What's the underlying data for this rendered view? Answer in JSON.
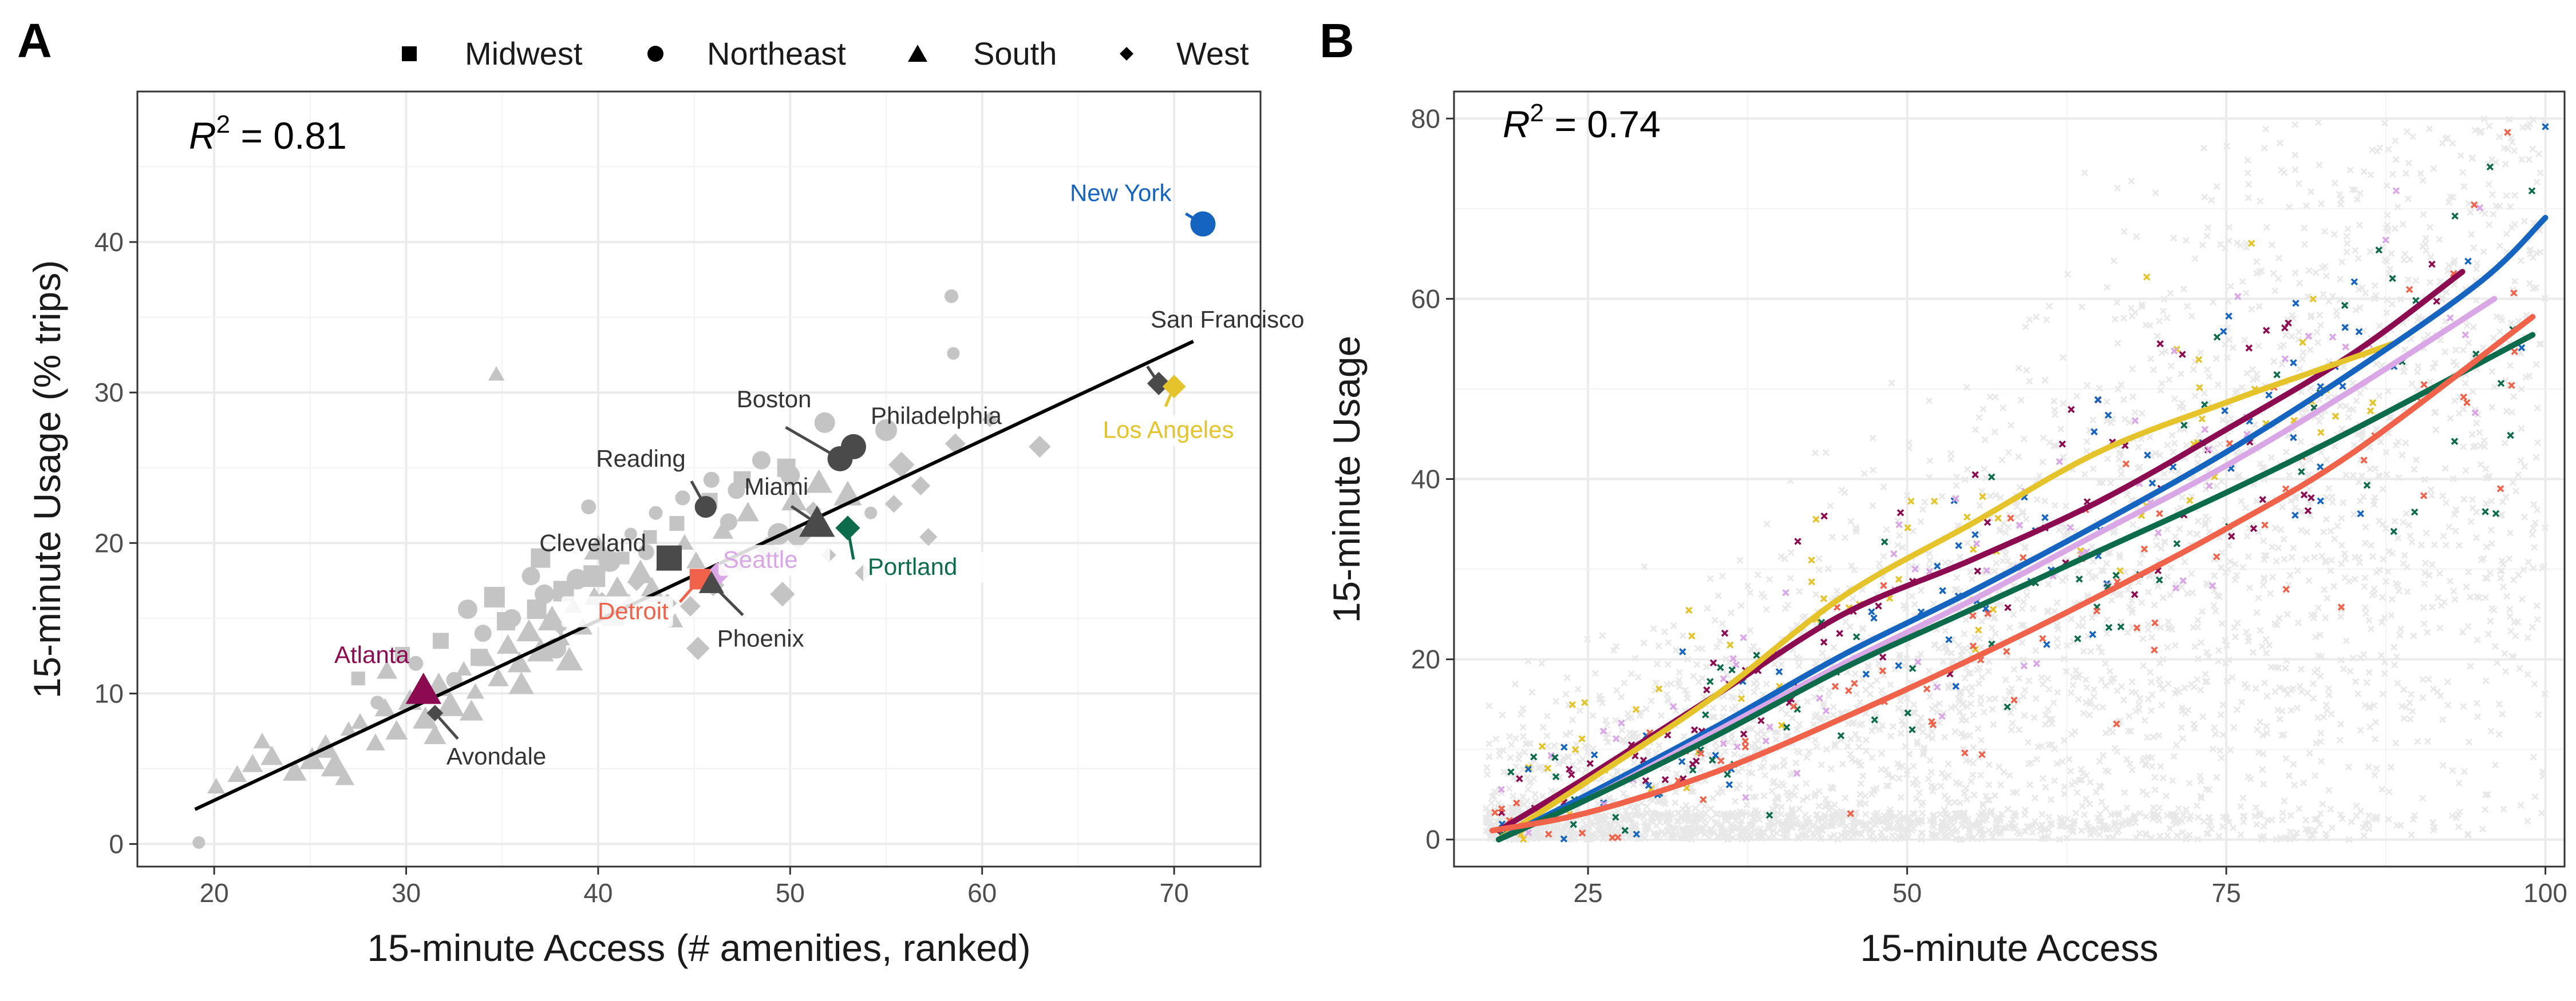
{
  "colors": {
    "grey_points": "#c4c4c4",
    "dark_points": "#4a4a4a",
    "fit_line": "#000000",
    "bg_cloud": "#e8e8e8",
    "new_york": "#1565c0",
    "los_angeles": "#e5c32a",
    "atlanta": "#8c0a4f",
    "detroit": "#f0624a",
    "seattle": "#d9a6e6",
    "portland": "#0b6b4a"
  },
  "panel_a": {
    "letter": "A",
    "r2_label": "R",
    "r2_sup": "2",
    "r2_value": " = 0.81",
    "legend": [
      {
        "shape": "square",
        "label": "Midwest"
      },
      {
        "shape": "circle",
        "label": "Northeast"
      },
      {
        "shape": "triangle",
        "label": "South"
      },
      {
        "shape": "diamond",
        "label": "West"
      }
    ]
  },
  "panel_b": {
    "letter": "B",
    "r2_label": "R",
    "r2_sup": "2",
    "r2_value": " = 0.74"
  },
  "chart_data": [
    {
      "type": "scatter",
      "panel": "A",
      "title": "",
      "xlabel": "15-minute Access (# amenities, ranked)",
      "ylabel": "15-minute Usage (% trips)",
      "xlim": [
        16,
        74.5
      ],
      "ylim": [
        -1.5,
        50
      ],
      "xticks": [
        20,
        30,
        40,
        50,
        60,
        70
      ],
      "yticks": [
        0,
        10,
        20,
        30,
        40
      ],
      "r2": 0.81,
      "fit_line": {
        "x": [
          19,
          71
        ],
        "y": [
          2.3,
          33.4
        ]
      },
      "highlighted_cities": [
        {
          "name": "New York",
          "x": 71.5,
          "y": 41.2,
          "shape": "circle",
          "color_key": "new_york"
        },
        {
          "name": "San Francisco",
          "x": 69.2,
          "y": 30.6,
          "shape": "diamond",
          "color_key": "dark_points"
        },
        {
          "name": "Los Angeles",
          "x": 70.0,
          "y": 30.4,
          "shape": "diamond",
          "color_key": "los_angeles"
        },
        {
          "name": "Boston",
          "x": 52.6,
          "y": 25.6,
          "shape": "circle",
          "color_key": "dark_points"
        },
        {
          "name": "Philadelphia",
          "x": 53.3,
          "y": 26.4,
          "shape": "circle",
          "color_key": "dark_points"
        },
        {
          "name": "Reading",
          "x": 45.6,
          "y": 22.4,
          "shape": "circle",
          "color_key": "dark_points"
        },
        {
          "name": "Miami",
          "x": 51.4,
          "y": 21.3,
          "shape": "triangle",
          "color_key": "dark_points"
        },
        {
          "name": "Portland",
          "x": 53.0,
          "y": 21.0,
          "shape": "diamond",
          "color_key": "portland"
        },
        {
          "name": "Cleveland",
          "x": 43.7,
          "y": 19.0,
          "shape": "square",
          "color_key": "dark_points"
        },
        {
          "name": "Seattle",
          "x": 46.2,
          "y": 17.9,
          "shape": "diamond",
          "color_key": "seattle"
        },
        {
          "name": "Detroit",
          "x": 45.3,
          "y": 17.6,
          "shape": "square",
          "color_key": "detroit"
        },
        {
          "name": "Phoenix",
          "x": 45.9,
          "y": 17.3,
          "shape": "triangle",
          "color_key": "dark_points"
        },
        {
          "name": "Atlanta",
          "x": 30.9,
          "y": 10.2,
          "shape": "triangle",
          "color_key": "atlanta"
        },
        {
          "name": "Avondale",
          "x": 31.5,
          "y": 8.7,
          "shape": "diamond",
          "color_key": "dark_points"
        }
      ],
      "background_points": [
        [
          19.2,
          0.1,
          "c"
        ],
        [
          20.1,
          3.8,
          "t"
        ],
        [
          21.2,
          4.6,
          "t"
        ],
        [
          22.0,
          5.3,
          "t"
        ],
        [
          23.0,
          5.8,
          "t"
        ],
        [
          24.2,
          4.8,
          "t"
        ],
        [
          25.1,
          5.6,
          "t"
        ],
        [
          25.8,
          6.4,
          "t"
        ],
        [
          26.3,
          5.2,
          "t"
        ],
        [
          27.0,
          7.6,
          "t"
        ],
        [
          27.6,
          8.1,
          "t"
        ],
        [
          28.4,
          6.7,
          "t"
        ],
        [
          28.9,
          9.0,
          "t"
        ],
        [
          29.5,
          7.5,
          "t"
        ],
        [
          30.2,
          9.5,
          "t"
        ],
        [
          31.0,
          8.3,
          "t"
        ],
        [
          31.7,
          10.5,
          "t"
        ],
        [
          32.3,
          9.2,
          "t"
        ],
        [
          33.0,
          11.6,
          "t"
        ],
        [
          33.6,
          10.1,
          "t"
        ],
        [
          34.2,
          12.3,
          "t"
        ],
        [
          34.8,
          11.0,
          "t"
        ],
        [
          35.3,
          13.2,
          "t"
        ],
        [
          35.9,
          12.0,
          "t"
        ],
        [
          36.4,
          14.1,
          "t"
        ],
        [
          37.0,
          12.8,
          "t"
        ],
        [
          37.6,
          14.9,
          "t"
        ],
        [
          38.1,
          13.6,
          "t"
        ],
        [
          38.7,
          15.8,
          "t"
        ],
        [
          39.2,
          14.4,
          "t"
        ],
        [
          39.8,
          16.4,
          "t"
        ],
        [
          40.4,
          15.2,
          "t"
        ],
        [
          41.0,
          17.0,
          "t"
        ],
        [
          41.6,
          15.8,
          "t"
        ],
        [
          42.2,
          18.0,
          "t"
        ],
        [
          42.8,
          16.8,
          "t"
        ],
        [
          43.4,
          18.6,
          "t"
        ],
        [
          44.5,
          20.0,
          "t"
        ],
        [
          45.1,
          18.8,
          "t"
        ],
        [
          46.5,
          20.8,
          "t"
        ],
        [
          47.8,
          22.0,
          "t"
        ],
        [
          49.0,
          19.6,
          "t"
        ],
        [
          50.2,
          22.8,
          "t"
        ],
        [
          51.5,
          24.0,
          "t"
        ],
        [
          53.0,
          23.2,
          "t"
        ],
        [
          34.7,
          31.2,
          "t"
        ],
        [
          22.5,
          6.8,
          "t"
        ],
        [
          26.8,
          4.4,
          "t"
        ],
        [
          29.0,
          11.5,
          "t"
        ],
        [
          31.5,
          7.2,
          "t"
        ],
        [
          33.4,
          8.8,
          "t"
        ],
        [
          36.0,
          10.6,
          "t"
        ],
        [
          38.5,
          12.2,
          "t"
        ],
        [
          40.0,
          19.6,
          "t"
        ],
        [
          44.0,
          14.8,
          "t"
        ],
        [
          28.5,
          9.4,
          "c"
        ],
        [
          30.5,
          12.0,
          "c"
        ],
        [
          32.5,
          10.9,
          "c"
        ],
        [
          34.0,
          14.0,
          "c"
        ],
        [
          35.5,
          15.0,
          "c"
        ],
        [
          37.2,
          16.6,
          "c"
        ],
        [
          38.9,
          17.6,
          "c"
        ],
        [
          40.6,
          18.8,
          "c"
        ],
        [
          41.7,
          20.6,
          "c"
        ],
        [
          43.0,
          22.0,
          "c"
        ],
        [
          44.4,
          23.0,
          "c"
        ],
        [
          45.9,
          24.2,
          "c"
        ],
        [
          47.2,
          23.5,
          "c"
        ],
        [
          48.5,
          25.5,
          "c"
        ],
        [
          50.0,
          24.5,
          "c"
        ],
        [
          51.8,
          28.0,
          "c"
        ],
        [
          55.0,
          27.5,
          "c"
        ],
        [
          58.5,
          32.6,
          "c"
        ],
        [
          58.4,
          36.4,
          "c"
        ],
        [
          39.5,
          22.4,
          "c"
        ],
        [
          42.5,
          19.4,
          "c"
        ],
        [
          46.8,
          21.4,
          "c"
        ],
        [
          36.5,
          17.8,
          "c"
        ],
        [
          33.2,
          15.6,
          "c"
        ],
        [
          37.8,
          13.0,
          "c"
        ],
        [
          49.4,
          20.6,
          "c"
        ],
        [
          54.2,
          22.0,
          "c"
        ],
        [
          27.5,
          11.0,
          "s"
        ],
        [
          29.8,
          12.6,
          "s"
        ],
        [
          31.8,
          13.5,
          "s"
        ],
        [
          33.8,
          12.4,
          "s"
        ],
        [
          35.2,
          14.8,
          "s"
        ],
        [
          36.8,
          15.6,
          "s"
        ],
        [
          38.2,
          16.8,
          "s"
        ],
        [
          39.8,
          17.8,
          "s"
        ],
        [
          41.3,
          19.0,
          "s"
        ],
        [
          42.7,
          20.4,
          "s"
        ],
        [
          44.1,
          21.3,
          "s"
        ],
        [
          45.8,
          22.8,
          "s"
        ],
        [
          47.5,
          24.2,
          "s"
        ],
        [
          49.8,
          25.0,
          "s"
        ],
        [
          37.0,
          19.0,
          "s"
        ],
        [
          34.6,
          16.4,
          "s"
        ],
        [
          40.8,
          15.2,
          "s"
        ],
        [
          38.0,
          14.4,
          "d"
        ],
        [
          40.2,
          16.2,
          "d"
        ],
        [
          42.0,
          17.4,
          "d"
        ],
        [
          43.6,
          16.0,
          "d"
        ],
        [
          44.8,
          15.8,
          "d"
        ],
        [
          46.0,
          17.2,
          "d"
        ],
        [
          47.4,
          18.8,
          "d"
        ],
        [
          48.8,
          19.6,
          "d"
        ],
        [
          50.4,
          20.4,
          "d"
        ],
        [
          52.0,
          19.2,
          "d"
        ],
        [
          53.8,
          18.0,
          "d"
        ],
        [
          55.4,
          22.6,
          "d"
        ],
        [
          56.8,
          23.8,
          "d"
        ],
        [
          58.6,
          26.6,
          "d"
        ],
        [
          63.0,
          26.4,
          "d"
        ],
        [
          45.2,
          13.0,
          "d"
        ],
        [
          49.6,
          16.6,
          "d"
        ],
        [
          55.8,
          25.2,
          "d"
        ],
        [
          60.4,
          28.2,
          "d"
        ],
        [
          51.2,
          22.2,
          "d"
        ],
        [
          57.2,
          20.4,
          "d"
        ]
      ]
    },
    {
      "type": "scatter",
      "panel": "B",
      "title": "",
      "xlabel": "15-minute Access",
      "ylabel": "15-minute Usage",
      "xlim": [
        14.5,
        101.5
      ],
      "ylim": [
        -3,
        83
      ],
      "xticks": [
        25,
        50,
        75,
        100
      ],
      "yticks": [
        0,
        20,
        40,
        60,
        80
      ],
      "r2": 0.74,
      "background": "dense grey cloud of neighbourhood points covering access 17-100, usage 0-80",
      "series": [
        {
          "name": "Atlanta",
          "color_key": "atlanta",
          "x": [
            18,
            25,
            35,
            45,
            55,
            65,
            75,
            85,
            93.5
          ],
          "y": [
            1.0,
            7.0,
            16.0,
            25.0,
            31.0,
            37.5,
            45.5,
            54.0,
            63.0
          ]
        },
        {
          "name": "Los Angeles",
          "color_key": "los_angeles",
          "x": [
            18,
            25,
            35,
            45,
            55,
            65,
            75,
            82,
            88
          ],
          "y": [
            0.0,
            6.5,
            16.0,
            27.0,
            35.0,
            43.0,
            48.5,
            52.0,
            55.0
          ]
        },
        {
          "name": "New York",
          "color_key": "new_york",
          "x": [
            18,
            25,
            35,
            45,
            55,
            65,
            75,
            85,
            95,
            100
          ],
          "y": [
            0.0,
            5.0,
            12.5,
            20.5,
            27.5,
            35.0,
            43.0,
            52.0,
            62.0,
            69.0
          ]
        },
        {
          "name": "Seattle",
          "color_key": "seattle",
          "x": [
            18,
            25,
            35,
            45,
            55,
            65,
            75,
            85,
            96
          ],
          "y": [
            0.0,
            4.5,
            12.0,
            19.5,
            26.5,
            34.0,
            41.5,
            50.0,
            60.0
          ]
        },
        {
          "name": "Portland",
          "color_key": "portland",
          "x": [
            18,
            25,
            35,
            45,
            55,
            65,
            75,
            85,
            99
          ],
          "y": [
            0.0,
            4.5,
            11.5,
            19.0,
            25.5,
            32.0,
            38.5,
            45.5,
            56.0
          ]
        },
        {
          "name": "Detroit",
          "color_key": "detroit",
          "x": [
            17.5,
            25,
            35,
            45,
            55,
            65,
            75,
            85,
            99
          ],
          "y": [
            1.0,
            3.0,
            7.5,
            13.5,
            20.0,
            27.0,
            34.5,
            43.0,
            58.0
          ]
        }
      ]
    }
  ]
}
